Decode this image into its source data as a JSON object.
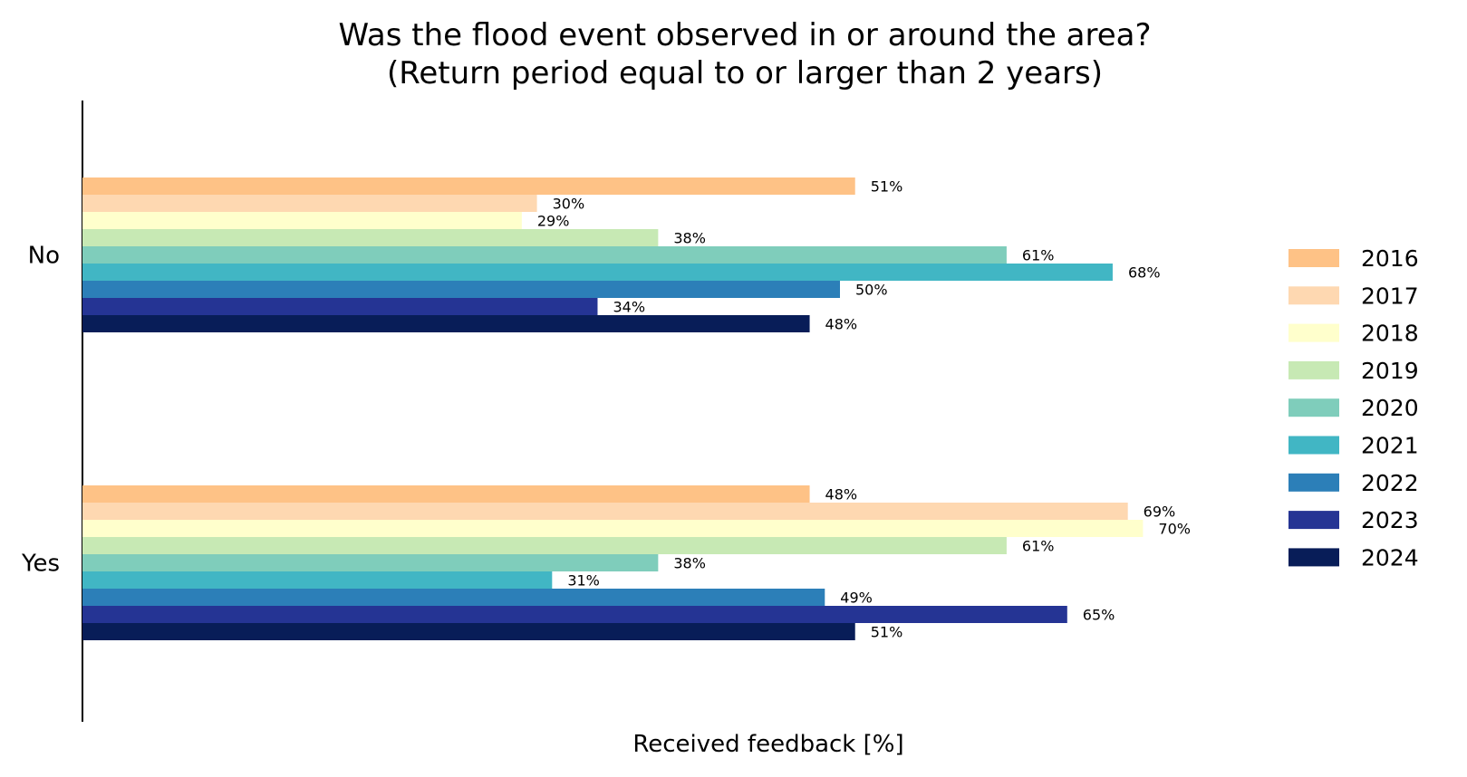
{
  "chart_data": {
    "type": "bar",
    "orientation": "horizontal",
    "title": "Was the flood event observed in or around the area?",
    "subtitle": "(Return period equal to or larger than 2 years)",
    "xlabel": "Received feedback [%]",
    "ylabel": "",
    "categories": [
      "No",
      "Yes"
    ],
    "xlim": [
      0,
      100
    ],
    "grid": false,
    "legend_position": "right",
    "value_suffix": "%",
    "series": [
      {
        "name": "2016",
        "color": "#fec286",
        "values": [
          51,
          48
        ]
      },
      {
        "name": "2017",
        "color": "#fed8b1",
        "values": [
          30,
          69
        ]
      },
      {
        "name": "2018",
        "color": "#ffffcc",
        "values": [
          29,
          70
        ]
      },
      {
        "name": "2019",
        "color": "#c7e9b4",
        "values": [
          38,
          61
        ]
      },
      {
        "name": "2020",
        "color": "#7fcdbb",
        "values": [
          61,
          38
        ]
      },
      {
        "name": "2021",
        "color": "#41b6c4",
        "values": [
          68,
          31
        ]
      },
      {
        "name": "2022",
        "color": "#2c7fb8",
        "values": [
          50,
          49
        ]
      },
      {
        "name": "2023",
        "color": "#253494",
        "values": [
          34,
          65
        ]
      },
      {
        "name": "2024",
        "color": "#081d58",
        "values": [
          48,
          51
        ]
      }
    ]
  }
}
